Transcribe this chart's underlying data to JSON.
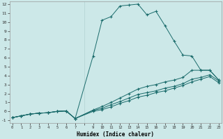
{
  "xlabel": "Humidex (Indice chaleur)",
  "bg_color": "#cce8e8",
  "grid_color": "#aacccc",
  "line_color": "#1a6b6b",
  "xlim": [
    -0.3,
    23.3
  ],
  "ylim": [
    -1.3,
    12.3
  ],
  "xticks": [
    0,
    1,
    2,
    3,
    4,
    5,
    6,
    7,
    9,
    10,
    11,
    12,
    13,
    14,
    15,
    16,
    17,
    18,
    19,
    20,
    21,
    22,
    23
  ],
  "yticks": [
    -1,
    0,
    1,
    2,
    3,
    4,
    5,
    6,
    7,
    8,
    9,
    10,
    11,
    12
  ],
  "series": [
    {
      "x": [
        0,
        1,
        2,
        3,
        4,
        5,
        6,
        7,
        9,
        10,
        11,
        12,
        13,
        14,
        15,
        16,
        17,
        18,
        19,
        20,
        21,
        22,
        23
      ],
      "y": [
        -0.7,
        -0.5,
        -0.3,
        -0.2,
        -0.15,
        0.0,
        0.05,
        -0.8,
        6.2,
        10.2,
        10.6,
        11.8,
        11.9,
        12.0,
        10.8,
        11.2,
        9.6,
        7.9,
        6.3,
        6.2,
        4.6,
        4.6,
        3.5
      ]
    },
    {
      "x": [
        0,
        1,
        2,
        3,
        4,
        5,
        6,
        7,
        9,
        10,
        11,
        12,
        13,
        14,
        15,
        16,
        17,
        18,
        19,
        20,
        21,
        22,
        23
      ],
      "y": [
        -0.7,
        -0.5,
        -0.3,
        -0.2,
        -0.15,
        0.0,
        0.05,
        -0.8,
        0.15,
        0.55,
        1.0,
        1.5,
        2.0,
        2.5,
        2.8,
        3.0,
        3.3,
        3.5,
        3.8,
        4.6,
        4.6,
        4.6,
        3.5
      ]
    },
    {
      "x": [
        0,
        1,
        2,
        3,
        4,
        5,
        6,
        7,
        9,
        10,
        11,
        12,
        13,
        14,
        15,
        16,
        17,
        18,
        19,
        20,
        21,
        22,
        23
      ],
      "y": [
        -0.7,
        -0.5,
        -0.3,
        -0.2,
        -0.15,
        0.0,
        0.05,
        -0.8,
        0.1,
        0.35,
        0.75,
        1.1,
        1.5,
        1.9,
        2.1,
        2.3,
        2.6,
        2.8,
        3.1,
        3.6,
        3.8,
        4.1,
        3.4
      ]
    },
    {
      "x": [
        0,
        1,
        2,
        3,
        4,
        5,
        6,
        7,
        9,
        10,
        11,
        12,
        13,
        14,
        15,
        16,
        17,
        18,
        19,
        20,
        21,
        22,
        23
      ],
      "y": [
        -0.7,
        -0.5,
        -0.3,
        -0.2,
        -0.15,
        0.0,
        0.05,
        -0.8,
        0.0,
        0.2,
        0.5,
        0.9,
        1.2,
        1.6,
        1.8,
        2.1,
        2.3,
        2.6,
        2.9,
        3.3,
        3.6,
        3.9,
        3.2
      ]
    }
  ]
}
